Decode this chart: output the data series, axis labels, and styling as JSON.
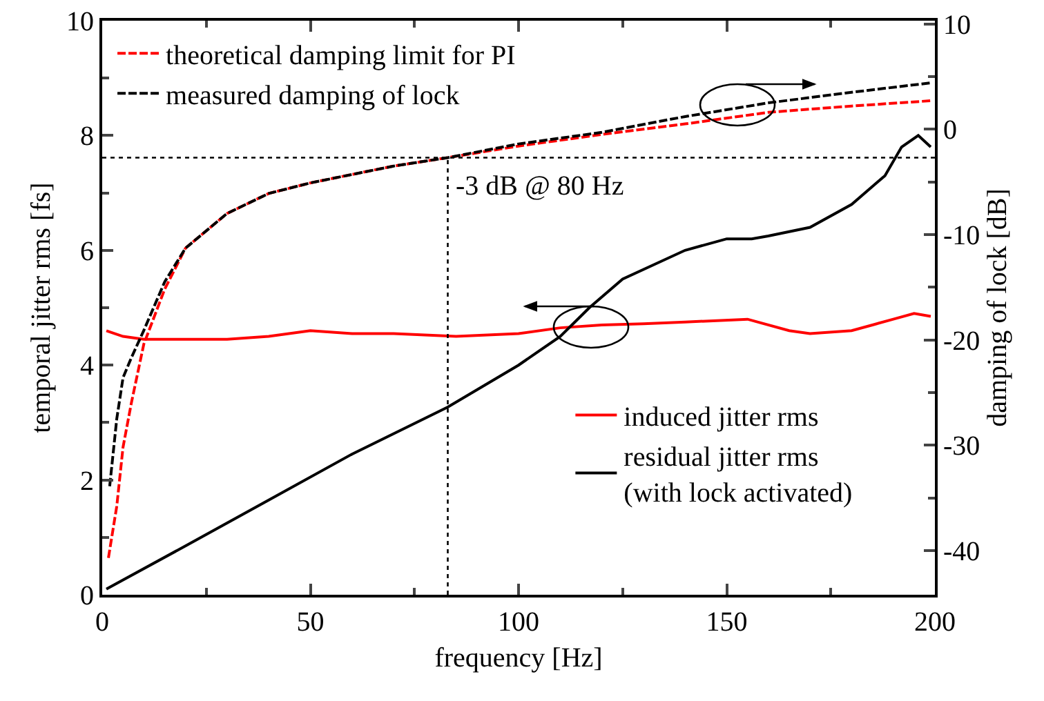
{
  "chart_data": {
    "type": "line",
    "xlabel": "frequency [Hz]",
    "ylabel": "temporal jitter rms [fs]",
    "y2label": "damping of lock [dB]",
    "xlim": [
      0,
      200
    ],
    "xticks": [
      0,
      50,
      100,
      150,
      200
    ],
    "ylim": [
      0,
      10
    ],
    "yticks": [
      0,
      2,
      4,
      6,
      8,
      10
    ],
    "y2lim": [
      -44.2,
      10.3
    ],
    "y2ticks": [
      -40,
      -30,
      -20,
      -10,
      0,
      10
    ],
    "grid": false,
    "legend": "top left",
    "marker": "none",
    "series": [
      {
        "name": "theoretical damping limit for PI",
        "color": "#ff0000",
        "axis": "y2",
        "line_style": "dashed",
        "x": [
          1.5,
          3.5,
          5,
          7,
          10,
          15,
          20,
          30,
          40,
          50,
          60,
          70,
          83,
          100,
          120,
          140,
          160,
          180,
          199
        ],
        "values": [
          -40.7,
          -35.8,
          -30.2,
          -26,
          -20.4,
          -15.2,
          -11.3,
          -8,
          -6.1,
          -5.1,
          -4.3,
          -3.5,
          -2.7,
          -1.6,
          -0.5,
          0.5,
          1.6,
          2.2,
          2.7
        ]
      },
      {
        "name": "measured damping of lock",
        "color": "#000000",
        "axis": "y2",
        "line_style": "dashed",
        "x": [
          1.8,
          3.5,
          5,
          7,
          10,
          15,
          20,
          30,
          40,
          50,
          60,
          70,
          83,
          100,
          120,
          140,
          160,
          180,
          199
        ],
        "values": [
          -33.9,
          -27.5,
          -23.6,
          -21.7,
          -19.1,
          -14.5,
          -11.3,
          -8,
          -6.1,
          -5.1,
          -4.3,
          -3.5,
          -2.7,
          -1.4,
          -0.3,
          1.2,
          2.5,
          3.5,
          4.4
        ]
      },
      {
        "name": "induced jitter rms",
        "color": "#ff0000",
        "line_style": "solid",
        "x": [
          1,
          5,
          10,
          20,
          30,
          40,
          50,
          60,
          70,
          85,
          100,
          110,
          120,
          130,
          140,
          155,
          165,
          170,
          180,
          185,
          190,
          195,
          199
        ],
        "values": [
          4.6,
          4.5,
          4.45,
          4.45,
          4.45,
          4.5,
          4.6,
          4.55,
          4.55,
          4.5,
          4.55,
          4.65,
          4.7,
          4.72,
          4.75,
          4.8,
          4.6,
          4.55,
          4.6,
          4.7,
          4.8,
          4.9,
          4.85
        ]
      },
      {
        "name": "residual jitter rms\n(with lock activated)",
        "color": "#000000",
        "line_style": "solid",
        "x": [
          1,
          20,
          40,
          60,
          83,
          100,
          110,
          117,
          125,
          140,
          150,
          156,
          160,
          170,
          180,
          188,
          192,
          196,
          199
        ],
        "values": [
          0.1,
          0.85,
          1.65,
          2.45,
          3.27,
          4.0,
          4.5,
          5.0,
          5.5,
          6.0,
          6.2,
          6.2,
          6.25,
          6.4,
          6.8,
          7.3,
          7.8,
          8.0,
          7.8
        ]
      }
    ],
    "ref_lines": [
      {
        "axis": "y2",
        "value": -2.7,
        "line_style": "dotted",
        "color": "#000000"
      },
      {
        "axis": "x",
        "value": 83,
        "label": "-3 dB @ 80 Hz",
        "line_style": "dotted",
        "color": "#000000"
      }
    ]
  }
}
